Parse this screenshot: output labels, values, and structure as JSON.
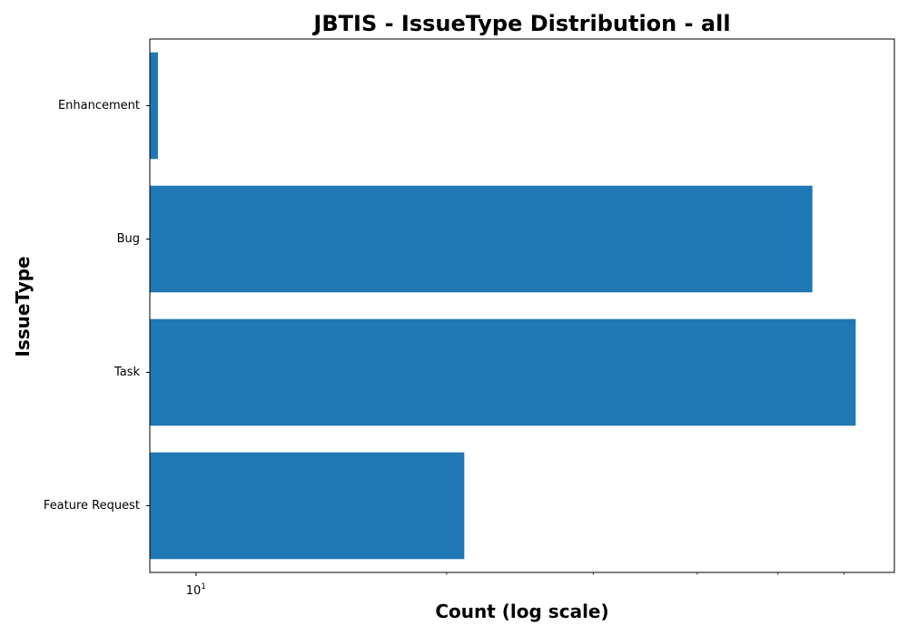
{
  "chart_data": {
    "type": "bar",
    "orientation": "horizontal",
    "title": "JBTIS - IssueType Distribution - all",
    "xlabel": "Count (log scale)",
    "ylabel": "IssueType",
    "x_scale": "log",
    "xlim": [
      8.8,
      69
    ],
    "x_major_ticks": [
      {
        "value": 10,
        "base": "10",
        "exponent": "1"
      }
    ],
    "x_minor_ticks": [
      20,
      30,
      40,
      50,
      60
    ],
    "categories": [
      "Enhancement",
      "Bug",
      "Task",
      "Feature Request"
    ],
    "values": [
      9,
      55,
      62,
      21
    ],
    "bar_color": "#1f77b4",
    "grid": false,
    "legend": "none"
  }
}
